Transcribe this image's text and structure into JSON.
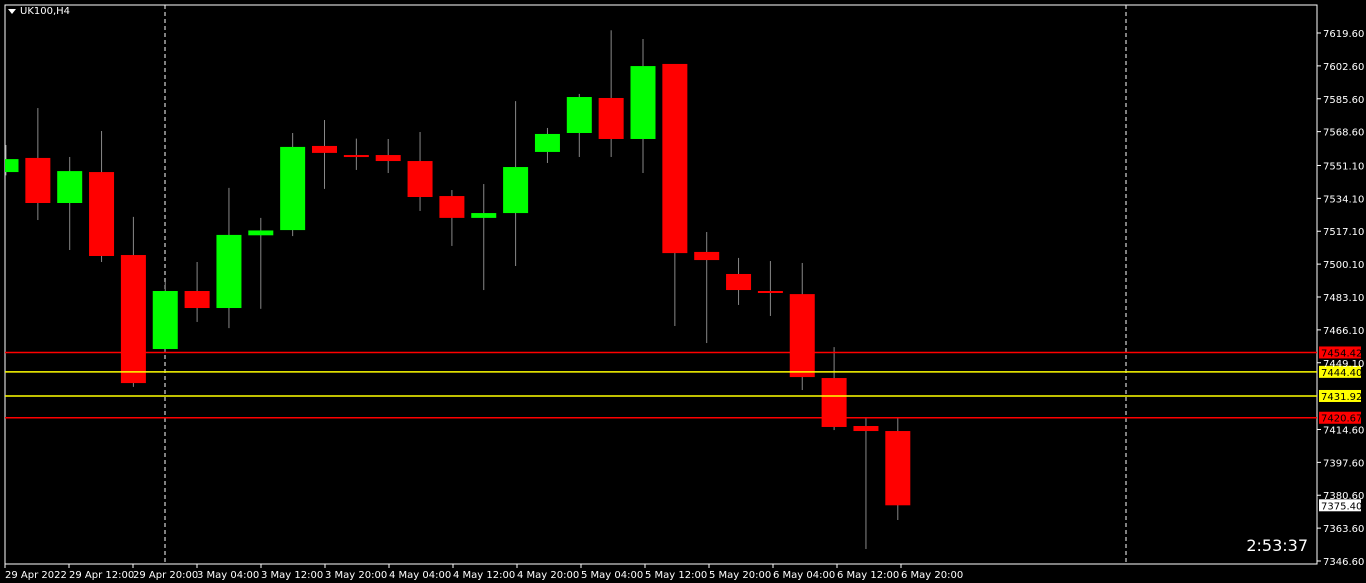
{
  "title": "UK100,H4",
  "timer": "2:53:37",
  "colors": {
    "background": "#000000",
    "bull": "#00ff00",
    "bear": "#ff0000",
    "axis": "#ffffff",
    "yellow_line": "#ffff00",
    "red_line": "#ff0000"
  },
  "chart_data": {
    "type": "candlestick",
    "symbol": "UK100",
    "timeframe": "H4",
    "ylim": [
      7346.6,
      7619.6
    ],
    "y_ticks": [
      "7619.60",
      "7602.60",
      "7585.60",
      "7568.60",
      "7551.10",
      "7534.10",
      "7517.10",
      "7500.10",
      "7483.10",
      "7466.10",
      "7449.10",
      "7414.60",
      "7397.60",
      "7380.60",
      "7363.60",
      "7346.60"
    ],
    "x_ticks": [
      "29 Apr 2022",
      "29 Apr 12:00",
      "29 Apr 20:00",
      "3 May 04:00",
      "3 May 12:00",
      "3 May 20:00",
      "4 May 04:00",
      "4 May 12:00",
      "4 May 20:00",
      "5 May 04:00",
      "5 May 12:00",
      "5 May 20:00",
      "6 May 04:00",
      "6 May 12:00",
      "6 May 20:00"
    ],
    "candles": [
      {
        "o": 7547.7,
        "h": 7561.7,
        "l": 7546.0,
        "c": 7554.4
      },
      {
        "o": 7555.0,
        "h": 7580.8,
        "l": 7522.9,
        "c": 7531.7
      },
      {
        "o": 7531.7,
        "h": 7555.5,
        "l": 7507.4,
        "c": 7548.2
      },
      {
        "o": 7547.7,
        "h": 7568.9,
        "l": 7501.2,
        "c": 7504.3
      },
      {
        "o": 7504.8,
        "h": 7524.5,
        "l": 7436.6,
        "c": 7438.6
      },
      {
        "o": 7456.2,
        "h": 7490.9,
        "l": 7454.6,
        "c": 7486.2
      },
      {
        "o": 7486.2,
        "h": 7501.2,
        "l": 7470.2,
        "c": 7477.4
      },
      {
        "o": 7477.4,
        "h": 7539.5,
        "l": 7467.0,
        "c": 7515.2
      },
      {
        "o": 7515.0,
        "h": 7524.0,
        "l": 7477.0,
        "c": 7517.5
      },
      {
        "o": 7517.7,
        "h": 7567.9,
        "l": 7514.6,
        "c": 7560.7
      },
      {
        "o": 7561.2,
        "h": 7574.6,
        "l": 7539.0,
        "c": 7557.6
      },
      {
        "o": 7556.5,
        "h": 7565.0,
        "l": 7548.8,
        "c": 7555.5
      },
      {
        "o": 7556.5,
        "h": 7564.8,
        "l": 7547.2,
        "c": 7553.4
      },
      {
        "o": 7553.4,
        "h": 7568.4,
        "l": 7527.6,
        "c": 7534.8
      },
      {
        "o": 7535.3,
        "h": 7538.4,
        "l": 7509.5,
        "c": 7524.0
      },
      {
        "o": 7524.0,
        "h": 7541.5,
        "l": 7486.7,
        "c": 7526.5
      },
      {
        "o": 7526.5,
        "h": 7584.4,
        "l": 7499.1,
        "c": 7550.3
      },
      {
        "o": 7558.1,
        "h": 7570.5,
        "l": 7552.4,
        "c": 7567.4
      },
      {
        "o": 7567.9,
        "h": 7588.1,
        "l": 7555.5,
        "c": 7586.5
      },
      {
        "o": 7586.0,
        "h": 7621.0,
        "l": 7555.5,
        "c": 7564.8
      },
      {
        "o": 7564.8,
        "h": 7616.5,
        "l": 7547.2,
        "c": 7602.5
      },
      {
        "o": 7603.6,
        "h": 7603.6,
        "l": 7468.1,
        "c": 7505.8
      },
      {
        "o": 7506.4,
        "h": 7516.7,
        "l": 7459.3,
        "c": 7502.2
      },
      {
        "o": 7495.0,
        "h": 7503.3,
        "l": 7479.0,
        "c": 7486.7
      },
      {
        "o": 7486.2,
        "h": 7501.7,
        "l": 7473.3,
        "c": 7485.2
      },
      {
        "o": 7484.6,
        "h": 7500.7,
        "l": 7435.0,
        "c": 7441.7
      },
      {
        "o": 7441.2,
        "h": 7457.2,
        "l": 7414.3,
        "c": 7415.9
      },
      {
        "o": 7416.4,
        "h": 7420.5,
        "l": 7352.8,
        "c": 7413.8
      },
      {
        "o": 7413.8,
        "h": 7420.5,
        "l": 7367.8,
        "c": 7375.4
      }
    ],
    "horizontal_lines": [
      {
        "price": 7454.42,
        "label": "7454.42",
        "color": "#ff0000"
      },
      {
        "price": 7444.4,
        "label": "7444.40",
        "color": "#ffff00"
      },
      {
        "price": 7431.92,
        "label": "7431.92",
        "color": "#ffff00"
      },
      {
        "price": 7420.67,
        "label": "7420.67",
        "color": "#ff0000"
      }
    ],
    "current_price": {
      "price": 7375.4,
      "label": "7375.40"
    },
    "period_separators": [
      "29 Apr 20:00 + 1 bar",
      "after last bar"
    ]
  }
}
